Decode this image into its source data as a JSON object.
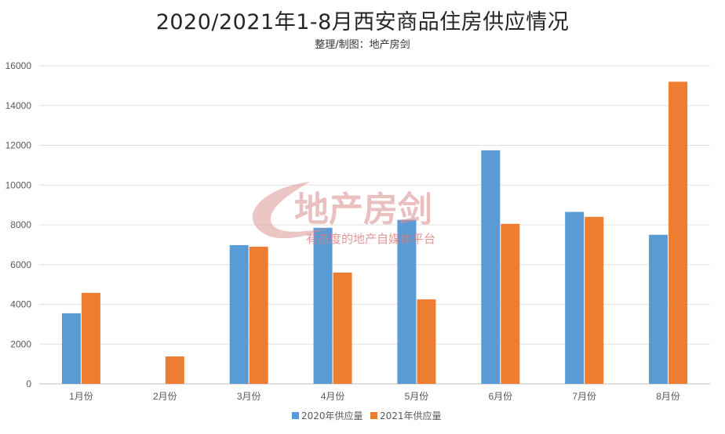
{
  "chart_data": {
    "type": "bar",
    "title": "2020/2021年1-8月西安商品住房供应情况",
    "subtitle": "整理/制图：地产房剑",
    "categories": [
      "1月份",
      "2月份",
      "3月份",
      "4月份",
      "5月份",
      "6月份",
      "7月份",
      "8月份"
    ],
    "series": [
      {
        "name": "2020年供应量",
        "color": "#5b9bd5",
        "values": [
          3550,
          0,
          6980,
          7850,
          8250,
          11750,
          8650,
          7500
        ]
      },
      {
        "name": "2021年供应量",
        "color": "#ed7d31",
        "values": [
          4580,
          1380,
          6900,
          5600,
          4250,
          8050,
          8400,
          15200
        ]
      }
    ],
    "yticks": [
      "0",
      "2000",
      "4000",
      "6000",
      "8000",
      "10000",
      "12000",
      "14000",
      "16000"
    ],
    "ylim": [
      0,
      16000
    ],
    "grid": true,
    "legend": "bottom",
    "xlabel": "",
    "ylabel": ""
  },
  "watermark": {
    "brand": "地产房剑",
    "slogan": "有态度的地产自媒体平台"
  }
}
